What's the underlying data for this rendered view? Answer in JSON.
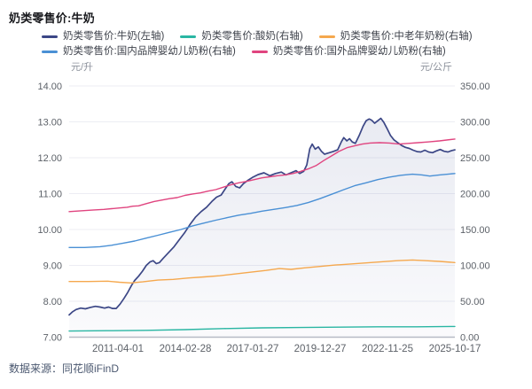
{
  "header": {
    "title": "奶类零售价:牛奶"
  },
  "footer": {
    "source": "数据来源：同花顺iFinD"
  },
  "theme": {
    "grid_line": "#ecedf3",
    "axis_line": "#b8bbc6",
    "tick_text": "#5d6269",
    "unit_text": "#8d929c",
    "area_fill_rgb": "100,112,165"
  },
  "chart_data": {
    "type": "line",
    "title": "奶类零售价:牛奶",
    "legend_position": "top-left",
    "grid": "horizontal",
    "left_axis": {
      "unit": "元/升",
      "min": 7,
      "max": 14,
      "tick_step": 1,
      "tick_labels": [
        "7.00",
        "8.00",
        "9.00",
        "10.00",
        "11.00",
        "12.00",
        "13.00",
        "14.00"
      ]
    },
    "right_axis": {
      "unit": "元/公斤",
      "min": 0,
      "max": 350,
      "tick_step": 50,
      "tick_labels": [
        "0.00",
        "50.00",
        "100.00",
        "150.00",
        "200.00",
        "250.00",
        "300.00",
        "350.00"
      ]
    },
    "x_ticks": [
      "2011-04-01",
      "2014-02-28",
      "2017-01-27",
      "2019-12-27",
      "2022-11-25",
      "2025-10-17"
    ],
    "series": [
      {
        "name": "奶类零售价:牛奶(左轴)",
        "axis": "left",
        "color": "#3c4786",
        "area": true,
        "points": [
          [
            0.0,
            7.62
          ],
          [
            0.008,
            7.7
          ],
          [
            0.018,
            7.77
          ],
          [
            0.03,
            7.81
          ],
          [
            0.042,
            7.79
          ],
          [
            0.055,
            7.83
          ],
          [
            0.068,
            7.86
          ],
          [
            0.08,
            7.84
          ],
          [
            0.092,
            7.81
          ],
          [
            0.102,
            7.84
          ],
          [
            0.112,
            7.8
          ],
          [
            0.122,
            7.8
          ],
          [
            0.132,
            7.92
          ],
          [
            0.142,
            8.08
          ],
          [
            0.152,
            8.25
          ],
          [
            0.162,
            8.45
          ],
          [
            0.17,
            8.58
          ],
          [
            0.18,
            8.7
          ],
          [
            0.19,
            8.84
          ],
          [
            0.2,
            9.0
          ],
          [
            0.21,
            9.1
          ],
          [
            0.218,
            9.13
          ],
          [
            0.226,
            9.05
          ],
          [
            0.234,
            9.08
          ],
          [
            0.244,
            9.2
          ],
          [
            0.258,
            9.36
          ],
          [
            0.272,
            9.52
          ],
          [
            0.286,
            9.72
          ],
          [
            0.3,
            9.92
          ],
          [
            0.314,
            10.15
          ],
          [
            0.328,
            10.35
          ],
          [
            0.342,
            10.5
          ],
          [
            0.356,
            10.62
          ],
          [
            0.37,
            10.78
          ],
          [
            0.382,
            10.9
          ],
          [
            0.394,
            10.96
          ],
          [
            0.404,
            11.12
          ],
          [
            0.414,
            11.28
          ],
          [
            0.422,
            11.33
          ],
          [
            0.432,
            11.2
          ],
          [
            0.442,
            11.16
          ],
          [
            0.452,
            11.28
          ],
          [
            0.462,
            11.36
          ],
          [
            0.475,
            11.45
          ],
          [
            0.49,
            11.53
          ],
          [
            0.505,
            11.58
          ],
          [
            0.52,
            11.5
          ],
          [
            0.535,
            11.56
          ],
          [
            0.55,
            11.6
          ],
          [
            0.562,
            11.52
          ],
          [
            0.575,
            11.58
          ],
          [
            0.588,
            11.64
          ],
          [
            0.598,
            11.56
          ],
          [
            0.608,
            11.62
          ],
          [
            0.616,
            11.8
          ],
          [
            0.624,
            12.25
          ],
          [
            0.63,
            12.38
          ],
          [
            0.638,
            12.24
          ],
          [
            0.646,
            12.3
          ],
          [
            0.654,
            12.18
          ],
          [
            0.662,
            12.1
          ],
          [
            0.672,
            12.13
          ],
          [
            0.684,
            12.17
          ],
          [
            0.696,
            12.22
          ],
          [
            0.706,
            12.45
          ],
          [
            0.712,
            12.56
          ],
          [
            0.72,
            12.47
          ],
          [
            0.727,
            12.53
          ],
          [
            0.734,
            12.44
          ],
          [
            0.742,
            12.4
          ],
          [
            0.752,
            12.62
          ],
          [
            0.762,
            12.88
          ],
          [
            0.77,
            13.03
          ],
          [
            0.778,
            13.08
          ],
          [
            0.785,
            13.04
          ],
          [
            0.792,
            12.96
          ],
          [
            0.8,
            13.03
          ],
          [
            0.808,
            13.1
          ],
          [
            0.816,
            12.98
          ],
          [
            0.824,
            12.82
          ],
          [
            0.833,
            12.62
          ],
          [
            0.842,
            12.5
          ],
          [
            0.852,
            12.42
          ],
          [
            0.862,
            12.34
          ],
          [
            0.872,
            12.29
          ],
          [
            0.882,
            12.26
          ],
          [
            0.892,
            12.21
          ],
          [
            0.902,
            12.17
          ],
          [
            0.912,
            12.16
          ],
          [
            0.922,
            12.21
          ],
          [
            0.932,
            12.16
          ],
          [
            0.942,
            12.14
          ],
          [
            0.952,
            12.19
          ],
          [
            0.962,
            12.23
          ],
          [
            0.972,
            12.18
          ],
          [
            0.982,
            12.16
          ],
          [
            0.992,
            12.2
          ],
          [
            1.0,
            12.22
          ]
        ]
      },
      {
        "name": "奶类零售价:酸奶(右轴)",
        "axis": "right",
        "color": "#2ab6a3",
        "area": false,
        "points": [
          [
            0.0,
            8.5
          ],
          [
            0.1,
            9.0
          ],
          [
            0.2,
            9.5
          ],
          [
            0.3,
            10.5
          ],
          [
            0.4,
            12.0
          ],
          [
            0.5,
            13.0
          ],
          [
            0.6,
            13.5
          ],
          [
            0.7,
            14.0
          ],
          [
            0.8,
            14.5
          ],
          [
            0.9,
            14.5
          ],
          [
            1.0,
            15.0
          ]
        ]
      },
      {
        "name": "奶类零售价:中老年奶粉(右轴)",
        "axis": "right",
        "color": "#f5a84e",
        "area": false,
        "points": [
          [
            0.0,
            77.5
          ],
          [
            0.05,
            77.5
          ],
          [
            0.1,
            78.0
          ],
          [
            0.13,
            76.5
          ],
          [
            0.16,
            75.5
          ],
          [
            0.19,
            77.0
          ],
          [
            0.23,
            79.5
          ],
          [
            0.27,
            80.5
          ],
          [
            0.31,
            82.5
          ],
          [
            0.35,
            84.0
          ],
          [
            0.39,
            85.5
          ],
          [
            0.43,
            88.0
          ],
          [
            0.47,
            90.5
          ],
          [
            0.51,
            93.0
          ],
          [
            0.545,
            95.5
          ],
          [
            0.575,
            94.5
          ],
          [
            0.61,
            96.5
          ],
          [
            0.65,
            98.5
          ],
          [
            0.69,
            100.5
          ],
          [
            0.73,
            102.0
          ],
          [
            0.77,
            103.5
          ],
          [
            0.81,
            105.0
          ],
          [
            0.85,
            106.5
          ],
          [
            0.89,
            107.5
          ],
          [
            0.925,
            106.5
          ],
          [
            0.96,
            105.5
          ],
          [
            1.0,
            104.0
          ]
        ]
      },
      {
        "name": "奶类零售价:国内品牌婴幼儿奶粉(右轴)",
        "axis": "right",
        "color": "#4a90d5",
        "area": false,
        "points": [
          [
            0.0,
            125
          ],
          [
            0.04,
            125
          ],
          [
            0.08,
            126
          ],
          [
            0.11,
            128
          ],
          [
            0.14,
            131
          ],
          [
            0.17,
            134
          ],
          [
            0.2,
            138
          ],
          [
            0.23,
            142
          ],
          [
            0.26,
            146
          ],
          [
            0.29,
            150
          ],
          [
            0.32,
            155
          ],
          [
            0.35,
            159
          ],
          [
            0.38,
            163
          ],
          [
            0.41,
            166.5
          ],
          [
            0.44,
            170
          ],
          [
            0.47,
            172.5
          ],
          [
            0.5,
            175.5
          ],
          [
            0.53,
            178
          ],
          [
            0.56,
            180.5
          ],
          [
            0.59,
            183.5
          ],
          [
            0.62,
            187.5
          ],
          [
            0.65,
            193
          ],
          [
            0.68,
            199
          ],
          [
            0.71,
            205
          ],
          [
            0.74,
            211
          ],
          [
            0.77,
            215
          ],
          [
            0.8,
            219.5
          ],
          [
            0.83,
            223
          ],
          [
            0.86,
            225.5
          ],
          [
            0.89,
            227
          ],
          [
            0.915,
            226
          ],
          [
            0.935,
            224.5
          ],
          [
            0.96,
            226
          ],
          [
            1.0,
            228
          ]
        ]
      },
      {
        "name": "奶类零售价:国外品牌婴幼儿奶粉(右轴)",
        "axis": "right",
        "color": "#e0447f",
        "area": false,
        "points": [
          [
            0.0,
            175
          ],
          [
            0.03,
            176
          ],
          [
            0.06,
            177
          ],
          [
            0.09,
            178
          ],
          [
            0.11,
            179
          ],
          [
            0.13,
            180
          ],
          [
            0.15,
            181
          ],
          [
            0.165,
            182.5
          ],
          [
            0.18,
            183
          ],
          [
            0.2,
            186
          ],
          [
            0.22,
            189
          ],
          [
            0.24,
            191
          ],
          [
            0.26,
            193
          ],
          [
            0.28,
            194.5
          ],
          [
            0.3,
            197.5
          ],
          [
            0.32,
            199.5
          ],
          [
            0.34,
            201
          ],
          [
            0.36,
            203.5
          ],
          [
            0.38,
            205.5
          ],
          [
            0.4,
            209
          ],
          [
            0.42,
            212.5
          ],
          [
            0.44,
            215
          ],
          [
            0.46,
            217
          ],
          [
            0.48,
            219.5
          ],
          [
            0.5,
            222
          ],
          [
            0.52,
            223.5
          ],
          [
            0.54,
            225
          ],
          [
            0.56,
            226
          ],
          [
            0.58,
            228
          ],
          [
            0.6,
            231
          ],
          [
            0.62,
            234.5
          ],
          [
            0.64,
            239
          ],
          [
            0.66,
            246
          ],
          [
            0.68,
            252.5
          ],
          [
            0.7,
            259
          ],
          [
            0.72,
            264
          ],
          [
            0.74,
            266.5
          ],
          [
            0.76,
            269
          ],
          [
            0.78,
            270.5
          ],
          [
            0.805,
            271
          ],
          [
            0.83,
            270.5
          ],
          [
            0.855,
            269
          ],
          [
            0.88,
            270
          ],
          [
            0.905,
            271
          ],
          [
            0.93,
            272
          ],
          [
            0.96,
            273.5
          ],
          [
            1.0,
            276
          ]
        ]
      }
    ]
  }
}
